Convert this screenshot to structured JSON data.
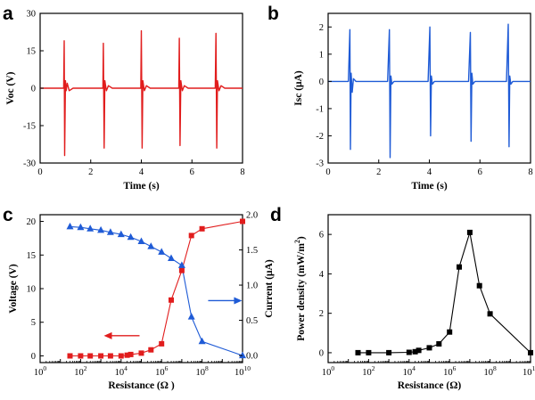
{
  "chart_data": [
    {
      "panel": "a",
      "type": "line",
      "xlabel": "Time (s)",
      "ylabel": "Voc (V)",
      "xlim": [
        0,
        8
      ],
      "ylim": [
        -30,
        30
      ],
      "xticks": [
        0,
        2,
        4,
        6,
        8
      ],
      "yticks": [
        -30,
        -15,
        0,
        15,
        30
      ],
      "color": "#e11d1d",
      "series": [
        {
          "x": [
            0,
            0.88,
            0.93,
            0.95,
            0.97,
            1.0,
            1.03,
            1.07,
            1.15,
            1.3,
            2.4,
            2.48,
            2.5,
            2.53,
            2.56,
            2.62,
            2.7,
            2.85,
            3.9,
            3.98,
            4.0,
            4.03,
            4.06,
            4.12,
            4.2,
            4.35,
            5.4,
            5.48,
            5.5,
            5.53,
            5.56,
            5.62,
            5.7,
            5.85,
            6.85,
            6.92,
            6.95,
            6.98,
            7.01,
            7.07,
            7.15,
            7.3,
            8.0
          ],
          "y": [
            0,
            0,
            0,
            19,
            -27,
            3,
            -1,
            2,
            -1,
            0,
            0,
            0,
            18,
            -24,
            3,
            -1,
            1,
            0,
            0,
            0,
            23,
            -24,
            3,
            -1,
            1,
            0,
            0,
            0,
            20,
            -23,
            3,
            -1,
            1,
            0,
            0,
            0,
            22,
            -24,
            3,
            -1,
            1,
            0,
            0
          ]
        }
      ]
    },
    {
      "panel": "b",
      "type": "line",
      "xlabel": "Time (s)",
      "ylabel": "Isc (μA)",
      "xlim": [
        0,
        8
      ],
      "ylim": [
        -3,
        2.5
      ],
      "xticks": [
        0,
        2,
        4,
        6,
        8
      ],
      "yticks": [
        -3,
        -2,
        -1,
        0,
        1,
        2
      ],
      "color": "#1f5bd6",
      "series": [
        {
          "x": [
            0,
            0.8,
            0.86,
            0.88,
            0.91,
            0.95,
            1.0,
            1.1,
            1.3,
            2.35,
            2.42,
            2.45,
            2.48,
            2.52,
            2.6,
            2.8,
            3.95,
            4.02,
            4.05,
            4.08,
            4.12,
            4.2,
            4.4,
            5.55,
            5.62,
            5.65,
            5.68,
            5.72,
            5.8,
            6.0,
            7.05,
            7.12,
            7.15,
            7.18,
            7.22,
            7.3,
            7.5,
            8.0
          ],
          "y": [
            0,
            0,
            1.9,
            -2.5,
            0.3,
            -0.4,
            0.1,
            0,
            0,
            0,
            1.9,
            -2.8,
            0.2,
            -0.1,
            0,
            0,
            0,
            2.0,
            -2.0,
            0.2,
            -0.1,
            0,
            0,
            0,
            1.8,
            -2.2,
            0.3,
            -0.1,
            0,
            0,
            0,
            2.1,
            -2.4,
            0.2,
            -0.1,
            0,
            0,
            0
          ]
        }
      ]
    },
    {
      "panel": "c",
      "type": "line",
      "xlabel": "Resistance (Ω )",
      "ylabel": "Voltage (V)",
      "ylabel_right": "Current (μA)",
      "xscale": "log",
      "xlim_exp": [
        0,
        10
      ],
      "ylim": [
        -1,
        21
      ],
      "ylim_right": [
        -0.1,
        2.0
      ],
      "yticks": [
        0,
        5,
        10,
        15,
        20
      ],
      "yticks_right": [
        "0.0",
        "0.5",
        "1.0",
        "1.5",
        "2.0"
      ],
      "xtick_labels": [
        "0",
        "2",
        "4",
        "6",
        "8",
        "10"
      ],
      "x_base": "10",
      "series": [
        {
          "name": "Voltage",
          "color": "#e11d1d",
          "marker": "square",
          "axis": "left",
          "x": [
            30,
            100,
            300,
            1000,
            3000,
            10000,
            20000,
            30000,
            100000,
            300000,
            1000000,
            3000000,
            10000000,
            30000000,
            100000000,
            10000000000
          ],
          "y": [
            0,
            0,
            0,
            0,
            0,
            0,
            0.1,
            0.2,
            0.4,
            0.9,
            1.8,
            8.3,
            12.7,
            17.9,
            18.9,
            20
          ]
        },
        {
          "name": "Current",
          "color": "#1f5bd6",
          "marker": "triangle",
          "axis": "right",
          "x": [
            30,
            100,
            300,
            1000,
            3000,
            10000,
            30000,
            100000,
            300000,
            1000000,
            3000000,
            10000000,
            30000000,
            100000000,
            10000000000
          ],
          "y": [
            1.83,
            1.82,
            1.8,
            1.78,
            1.75,
            1.72,
            1.68,
            1.62,
            1.55,
            1.47,
            1.38,
            1.28,
            0.55,
            0.2,
            0.0
          ]
        }
      ],
      "arrow_left_color": "#e11d1d",
      "arrow_right_color": "#1f5bd6"
    },
    {
      "panel": "d",
      "type": "line",
      "xlabel": "Resistance (Ω)",
      "ylabel": "Power density (mW/m",
      "ylabel_sup": "2",
      "ylabel_end": ")",
      "xscale": "log",
      "xlim_exp": [
        0,
        10
      ],
      "ylim": [
        -0.5,
        7
      ],
      "yticks": [
        0,
        2,
        4,
        6
      ],
      "xtick_labels": [
        "0",
        "2",
        "4",
        "6",
        "8",
        "10"
      ],
      "x_base": "10",
      "color": "#000000",
      "series": [
        {
          "marker": "square",
          "x": [
            30,
            100,
            1000,
            10000,
            20000,
            30000,
            100000,
            300000,
            1000000,
            3000000,
            10000000,
            30000000,
            100000000,
            10000000000
          ],
          "y": [
            0,
            0,
            0,
            0.02,
            0.05,
            0.12,
            0.25,
            0.45,
            1.05,
            4.35,
            6.1,
            3.4,
            1.97,
            0
          ]
        }
      ]
    }
  ],
  "panel_letters": [
    "a",
    "b",
    "c",
    "d"
  ]
}
